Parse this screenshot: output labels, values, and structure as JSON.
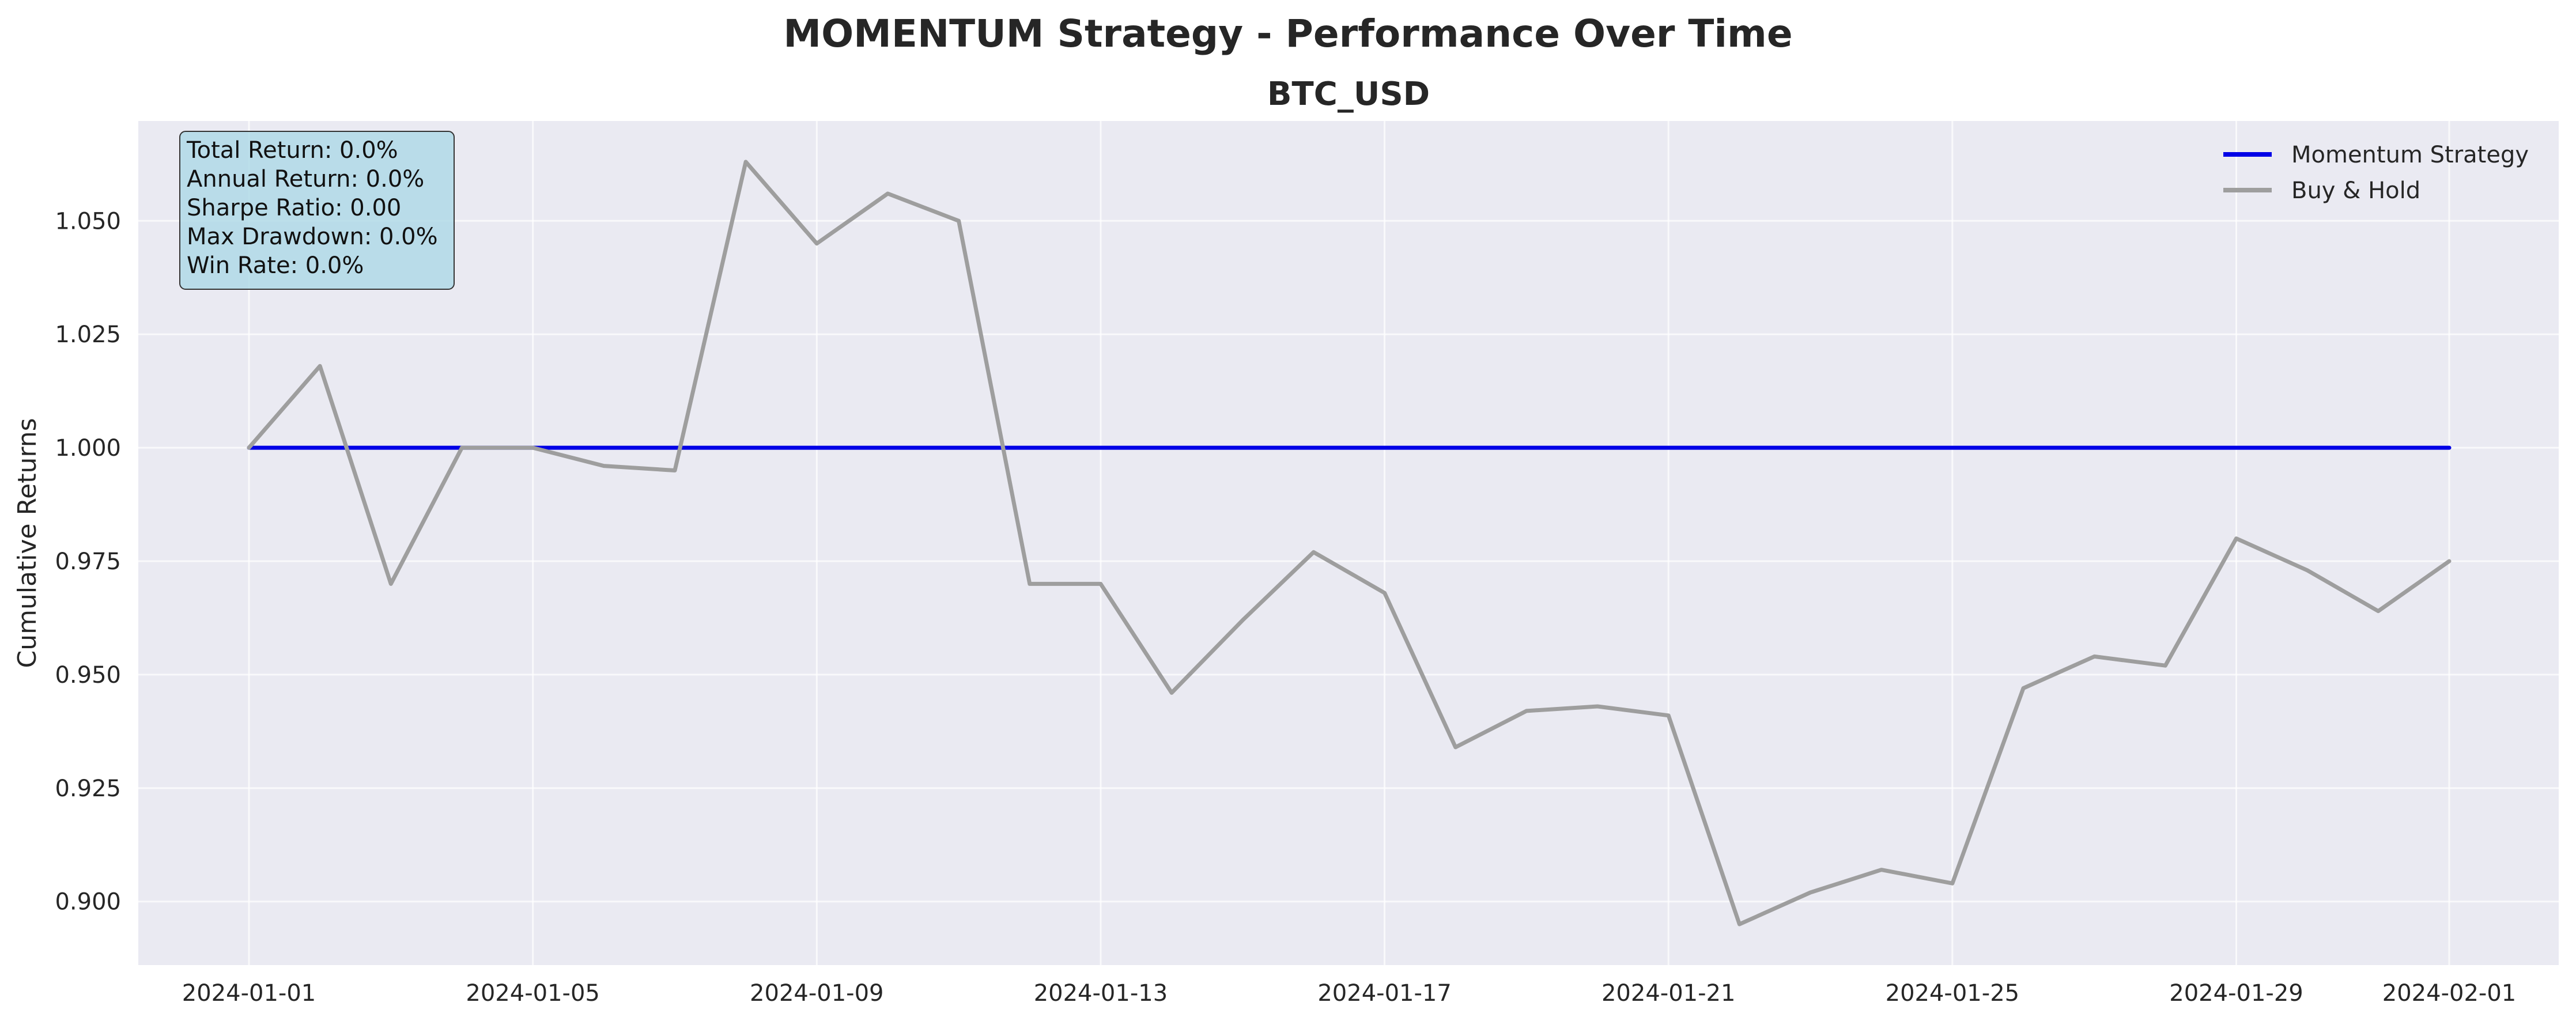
{
  "figure": {
    "title": "MOMENTUM Strategy - Performance Over Time"
  },
  "chart_data": {
    "type": "line",
    "title": "BTC_USD",
    "xlabel": "",
    "ylabel": "Cumulative Returns",
    "x": [
      "2024-01-01",
      "2024-01-02",
      "2024-01-03",
      "2024-01-04",
      "2024-01-05",
      "2024-01-06",
      "2024-01-07",
      "2024-01-08",
      "2024-01-09",
      "2024-01-10",
      "2024-01-11",
      "2024-01-12",
      "2024-01-13",
      "2024-01-14",
      "2024-01-15",
      "2024-01-16",
      "2024-01-17",
      "2024-01-18",
      "2024-01-19",
      "2024-01-20",
      "2024-01-21",
      "2024-01-22",
      "2024-01-23",
      "2024-01-24",
      "2024-01-25",
      "2024-01-26",
      "2024-01-27",
      "2024-01-28",
      "2024-01-29",
      "2024-01-30",
      "2024-01-31",
      "2024-02-01"
    ],
    "x_ticks": [
      "2024-01-01",
      "2024-01-05",
      "2024-01-09",
      "2024-01-13",
      "2024-01-17",
      "2024-01-21",
      "2024-01-25",
      "2024-01-29",
      "2024-02-01"
    ],
    "y_ticks": [
      "0.900",
      "0.925",
      "0.950",
      "0.975",
      "1.000",
      "1.025",
      "1.050"
    ],
    "ylim": [
      0.886,
      1.072
    ],
    "grid": true,
    "legend_position": "top-right",
    "series": [
      {
        "name": "Momentum Strategy",
        "color": "#0000e6",
        "values": [
          1.0,
          1.0,
          1.0,
          1.0,
          1.0,
          1.0,
          1.0,
          1.0,
          1.0,
          1.0,
          1.0,
          1.0,
          1.0,
          1.0,
          1.0,
          1.0,
          1.0,
          1.0,
          1.0,
          1.0,
          1.0,
          1.0,
          1.0,
          1.0,
          1.0,
          1.0,
          1.0,
          1.0,
          1.0,
          1.0,
          1.0,
          1.0
        ]
      },
      {
        "name": "Buy & Hold",
        "color": "#9e9e9e",
        "values": [
          1.0,
          1.018,
          0.97,
          1.0,
          1.0,
          0.996,
          0.995,
          1.063,
          1.045,
          1.056,
          1.05,
          0.97,
          0.97,
          0.946,
          0.962,
          0.977,
          0.968,
          0.934,
          0.942,
          0.943,
          0.941,
          0.895,
          0.902,
          0.907,
          0.904,
          0.947,
          0.954,
          0.952,
          0.98,
          0.973,
          0.964,
          0.975
        ]
      }
    ],
    "stats_box": [
      "Total Return: 0.0%",
      "Annual Return: 0.0%",
      "Sharpe Ratio: 0.00",
      "Max Drawdown: 0.0%",
      "Win Rate: 0.0%"
    ]
  }
}
